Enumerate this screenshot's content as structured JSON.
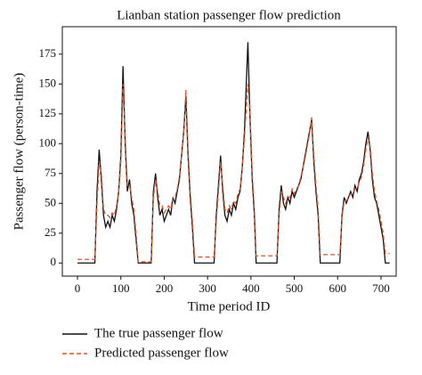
{
  "chart_data": {
    "type": "line",
    "title": "Lianban station passenger flow prediction",
    "x_label": "Time period ID",
    "y_label": "Passenger flow (person-time)",
    "x": [
      0,
      40,
      45,
      50,
      55,
      60,
      65,
      70,
      75,
      80,
      85,
      90,
      95,
      100,
      105,
      110,
      115,
      120,
      125,
      130,
      135,
      140,
      170,
      175,
      180,
      185,
      190,
      195,
      200,
      205,
      210,
      215,
      220,
      225,
      230,
      235,
      240,
      245,
      250,
      255,
      260,
      265,
      270,
      315,
      320,
      330,
      335,
      340,
      345,
      350,
      355,
      360,
      365,
      370,
      375,
      380,
      385,
      393,
      398,
      403,
      408,
      412,
      460,
      465,
      470,
      475,
      480,
      485,
      490,
      495,
      500,
      505,
      510,
      515,
      520,
      525,
      530,
      535,
      540,
      545,
      550,
      555,
      560,
      605,
      610,
      615,
      620,
      625,
      630,
      635,
      640,
      645,
      650,
      655,
      660,
      665,
      670,
      675,
      680,
      685,
      690,
      695,
      700,
      705,
      710,
      720
    ],
    "series": [
      {
        "name": "The true passenger flow",
        "color": "#111111",
        "dash": false,
        "values": [
          0,
          0,
          60,
          95,
          70,
          40,
          30,
          35,
          30,
          40,
          35,
          45,
          60,
          90,
          165,
          100,
          60,
          70,
          50,
          40,
          20,
          0,
          0,
          60,
          75,
          55,
          40,
          45,
          35,
          40,
          45,
          40,
          55,
          50,
          60,
          70,
          90,
          110,
          140,
          90,
          55,
          30,
          0,
          0,
          40,
          90,
          60,
          40,
          35,
          45,
          40,
          50,
          45,
          55,
          60,
          80,
          110,
          185,
          120,
          70,
          40,
          0,
          0,
          45,
          65,
          50,
          45,
          55,
          50,
          60,
          55,
          60,
          65,
          70,
          80,
          90,
          100,
          110,
          120,
          85,
          60,
          40,
          0,
          0,
          40,
          55,
          50,
          55,
          60,
          55,
          65,
          60,
          70,
          75,
          85,
          100,
          110,
          95,
          70,
          55,
          50,
          40,
          30,
          20,
          0,
          0
        ]
      },
      {
        "name": "Predicted passenger flow",
        "color": "#d9542c",
        "dash": true,
        "values": [
          3,
          3,
          50,
          85,
          75,
          45,
          40,
          40,
          38,
          42,
          40,
          48,
          60,
          85,
          150,
          105,
          65,
          65,
          55,
          45,
          25,
          1,
          1,
          55,
          70,
          60,
          48,
          48,
          42,
          45,
          48,
          45,
          55,
          55,
          62,
          72,
          90,
          110,
          145,
          95,
          60,
          35,
          5,
          5,
          35,
          85,
          65,
          45,
          42,
          48,
          45,
          52,
          50,
          58,
          62,
          80,
          105,
          150,
          125,
          75,
          45,
          6,
          6,
          40,
          60,
          55,
          50,
          55,
          55,
          62,
          58,
          62,
          65,
          72,
          80,
          88,
          98,
          108,
          122,
          90,
          65,
          45,
          7,
          7,
          38,
          52,
          52,
          55,
          58,
          58,
          62,
          62,
          68,
          72,
          82,
          95,
          105,
          98,
          75,
          60,
          52,
          45,
          35,
          25,
          8,
          8
        ]
      }
    ],
    "xlim": [
      -35,
      735
    ],
    "ylim": [
      -11,
      198
    ],
    "xticks": [
      0,
      100,
      200,
      300,
      400,
      500,
      600,
      700
    ],
    "yticks": [
      0,
      25,
      50,
      75,
      100,
      125,
      150,
      175
    ],
    "grid": false
  }
}
